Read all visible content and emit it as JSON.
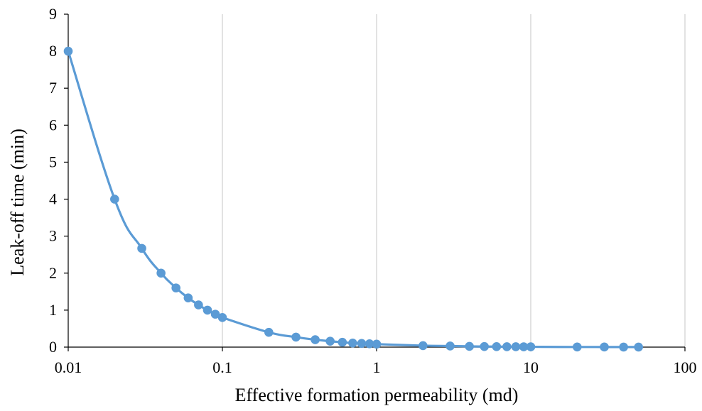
{
  "chart_data": {
    "type": "scatter",
    "title": "",
    "xlabel": "Effective formation permeability (md)",
    "ylabel": "Leak-off time (min)",
    "xscale": "log",
    "xlim": [
      0.01,
      100
    ],
    "ylim": [
      0,
      9
    ],
    "x_ticks": [
      "0.01",
      "0.1",
      "1",
      "10",
      "100"
    ],
    "y_ticks": [
      "0",
      "1",
      "2",
      "3",
      "4",
      "5",
      "6",
      "7",
      "8",
      "9"
    ],
    "grid": "vertical major gridlines",
    "legend": "none",
    "line": "smoothed line with markers",
    "series": [
      {
        "color": "#5b9bd5",
        "x": [
          0.01,
          0.02,
          0.03,
          0.04,
          0.05,
          0.06,
          0.07,
          0.08,
          0.09,
          0.1,
          0.2,
          0.3,
          0.4,
          0.5,
          0.6,
          0.7,
          0.8,
          0.9,
          1,
          2,
          3,
          4,
          5,
          6,
          7,
          8,
          9,
          10,
          20,
          30,
          40,
          50
        ],
        "y": [
          8,
          4,
          2.67,
          2,
          1.6,
          1.33,
          1.14,
          1,
          0.89,
          0.8,
          0.4,
          0.27,
          0.2,
          0.16,
          0.13,
          0.11,
          0.1,
          0.09,
          0.08,
          0.04,
          0.03,
          0.02,
          0.016,
          0.013,
          0.011,
          0.01,
          0.009,
          0.008,
          0.004,
          0.003,
          0.002,
          0.0016
        ]
      }
    ]
  }
}
